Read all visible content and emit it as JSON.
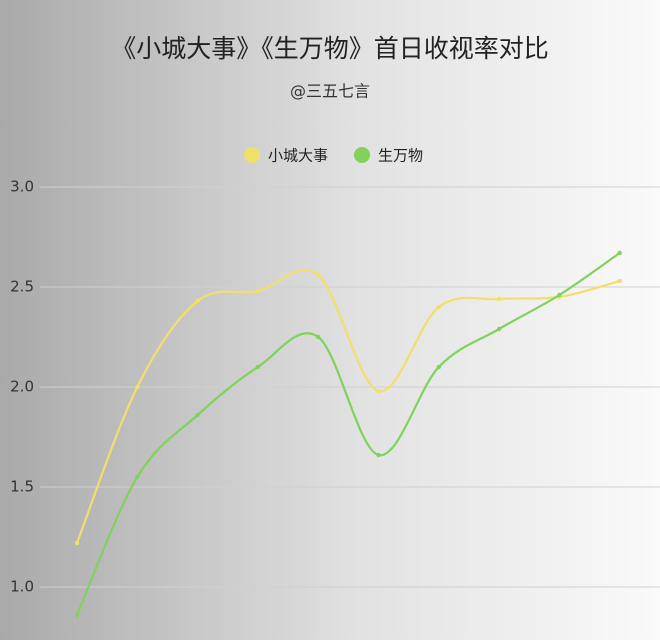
{
  "chart_data": {
    "type": "line",
    "title": "《小城大事》《生万物》首日收视率对比",
    "subtitle": "@三五七言",
    "categories": [
      null,
      null,
      null,
      null,
      null,
      null,
      null,
      null,
      null,
      null
    ],
    "series": [
      {
        "name": "小城大事",
        "color": "#f0e06a",
        "values": [
          1.22,
          2.0,
          2.43,
          2.48,
          2.56,
          1.98,
          2.4,
          2.44,
          2.45,
          2.53
        ]
      },
      {
        "name": "生万物",
        "color": "#80d25a",
        "values": [
          0.86,
          1.55,
          1.86,
          2.1,
          2.25,
          1.66,
          2.1,
          2.29,
          2.46,
          2.67
        ]
      }
    ],
    "ylim": [
      0.75,
      3.0
    ],
    "yticks": [
      {
        "value": 1.0,
        "label": "1.0"
      },
      {
        "value": 1.5,
        "label": "1.5"
      },
      {
        "value": 2.0,
        "label": "2.0"
      },
      {
        "value": 2.5,
        "label": "2.5"
      },
      {
        "value": 3.0,
        "label": "3.0"
      }
    ],
    "grid": true,
    "smooth": true,
    "legend": "top"
  }
}
